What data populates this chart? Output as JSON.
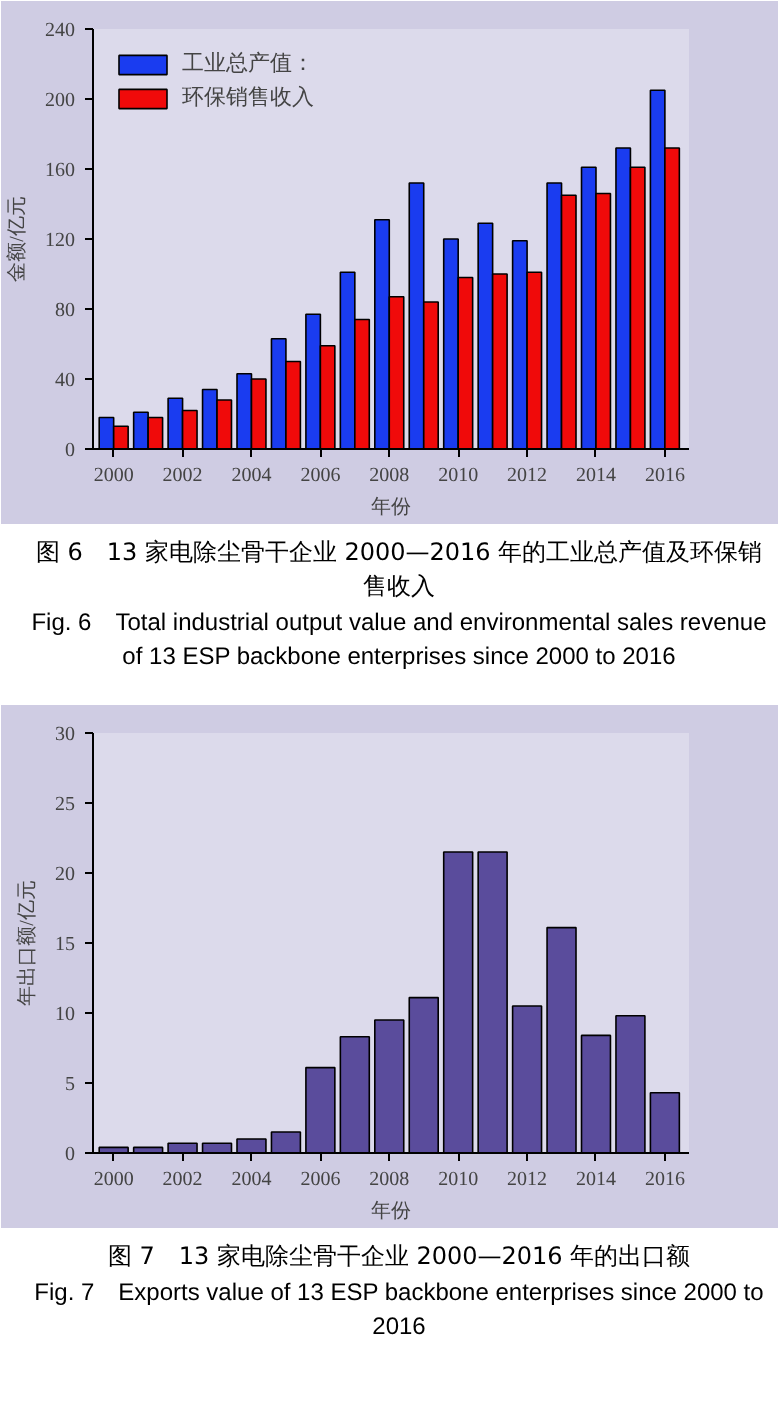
{
  "chart_data": [
    {
      "type": "bar",
      "x": [
        2000,
        2001,
        2002,
        2003,
        2004,
        2005,
        2006,
        2007,
        2008,
        2009,
        2010,
        2011,
        2012,
        2013,
        2014,
        2015,
        2016
      ],
      "xlabel": "年份",
      "ylabel": "金额/亿元",
      "xlim": [
        1999.4,
        2016.7
      ],
      "xticks": [
        2000,
        2002,
        2004,
        2006,
        2008,
        2010,
        2012,
        2014,
        2016
      ],
      "ylim": [
        0,
        240
      ],
      "yticks": [
        0,
        40,
        80,
        120,
        160,
        200,
        240
      ],
      "legend": "top left",
      "grid": false,
      "series": [
        {
          "name": "工业总产值：",
          "color": "#1a3cf0",
          "values": [
            18,
            21,
            29,
            34,
            43,
            63,
            77,
            101,
            131,
            152,
            120,
            129,
            119,
            152,
            161,
            172,
            205
          ]
        },
        {
          "name": "环保销售收入",
          "color": "#f00a0a",
          "values": [
            13,
            18,
            22,
            28,
            40,
            50,
            59,
            74,
            87,
            84,
            98,
            100,
            101,
            145,
            146,
            161,
            172
          ]
        }
      ],
      "annotations": [
        "图 6　13 家电除尘骨干企业 2000—2016 年的工业总产值及环保销售收入",
        "Fig. 6　Total industrial output value and environmental sales revenue of 13 ESP backbone enterprises since 2000 to 2016"
      ]
    },
    {
      "type": "bar",
      "x": [
        2000,
        2001,
        2002,
        2003,
        2004,
        2005,
        2006,
        2007,
        2008,
        2009,
        2010,
        2011,
        2012,
        2013,
        2014,
        2015,
        2016
      ],
      "xlabel": "年份",
      "ylabel": "年出口额/亿元",
      "xlim": [
        1999.4,
        2016.7
      ],
      "xticks": [
        2000,
        2002,
        2004,
        2006,
        2008,
        2010,
        2012,
        2014,
        2016
      ],
      "ylim": [
        0,
        30
      ],
      "yticks": [
        0,
        5,
        10,
        15,
        20,
        25,
        30
      ],
      "grid": false,
      "series": [
        {
          "color": "#5a4c9c",
          "values": [
            0.4,
            0.4,
            0.7,
            0.7,
            1.0,
            1.5,
            6.1,
            8.3,
            9.5,
            11.1,
            21.5,
            21.5,
            10.5,
            16.1,
            8.4,
            9.8,
            4.3
          ]
        }
      ],
      "annotations": [
        "图 7　13 家电除尘骨干企业 2000—2016 年的出口额",
        "Fig. 7　Exports value of 13 ESP backbone enterprises since 2000 to 2016"
      ]
    }
  ]
}
